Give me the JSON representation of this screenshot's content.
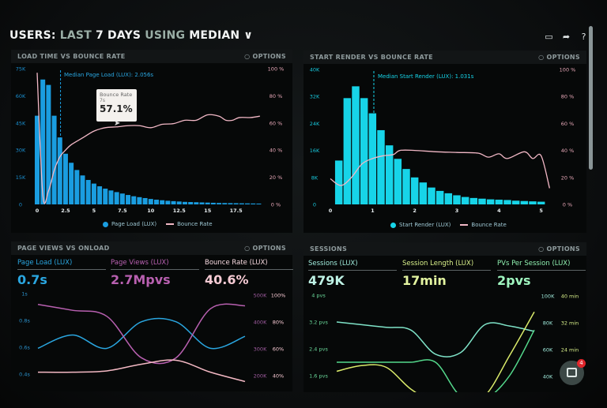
{
  "header": {
    "prefix": "USERS:",
    "range_pre": "LAST",
    "range_bold": "7 DAYS",
    "using": "USING",
    "mode": "MEDIAN",
    "chevron": "chevron-down-icon",
    "icons": [
      "monitor-icon",
      "share-icon",
      "help-icon"
    ]
  },
  "options_label": "OPTIONS",
  "colors": {
    "bars1": "#1a9de0",
    "bars2": "#17d4e8",
    "bounce": "#f2b8c6",
    "pageload": "#2aa6e0",
    "pageviews": "#b860b0",
    "bounce3": "#f4b9c4",
    "sessions": "#7fe3c8",
    "pvs": "#54d98c",
    "length": "#d9ea6a"
  },
  "panels": [
    {
      "title": "LOAD TIME VS BOUNCE RATE",
      "median_label": "Median Page Load (LUX): 2.056s",
      "legend": [
        "Page Load (LUX)",
        "Bounce Rate"
      ],
      "tooltip": {
        "title": "Bounce Rate",
        "x": "7s",
        "value": "57.1%"
      }
    },
    {
      "title": "START RENDER VS BOUNCE RATE",
      "median_label": "Median Start Render (LUX): 1.031s",
      "legend": [
        "Start Render (LUX)",
        "Bounce Rate"
      ]
    },
    {
      "title": "PAGE VIEWS VS ONLOAD",
      "kpis": [
        {
          "label": "Page Load (LUX)",
          "value": "0.7s"
        },
        {
          "label": "Page Views (LUX)",
          "value": "2.7Mpvs"
        },
        {
          "label": "Bounce Rate (LUX)",
          "value": "40.6%"
        }
      ]
    },
    {
      "title": "SESSIONS",
      "kpis": [
        {
          "label": "Sessions (LUX)",
          "value": "479K"
        },
        {
          "label": "Session Length (LUX)",
          "value": "17min"
        },
        {
          "label": "PVs Per Session (LUX)",
          "value": "2pvs"
        }
      ]
    }
  ],
  "chat": {
    "badge": "4",
    "icon": "chat-icon"
  },
  "chart_data": [
    {
      "type": "bar",
      "title": "LOAD TIME VS BOUNCE RATE",
      "xlim": [
        0,
        19.75
      ],
      "ylim": [
        0,
        75000
      ],
      "y2lim": [
        0,
        100
      ],
      "xticks": [
        "0",
        "2.5",
        "5",
        "7.5",
        "10",
        "12.5",
        "15",
        "17.5"
      ],
      "yticks": [
        "0",
        "15K",
        "30K",
        "45K",
        "60K",
        "75K"
      ],
      "y2ticks": [
        "0 %",
        "20 %",
        "40 %",
        "60 %",
        "80 %",
        "100 %"
      ],
      "median": 2.056,
      "series": [
        {
          "name": "Page Load (LUX)",
          "type": "bar",
          "bin_width": 0.5,
          "x_start": 0,
          "values": [
            49,
            69,
            66,
            49,
            37,
            28,
            23,
            19,
            16,
            13.5,
            11.5,
            10,
            8.7,
            7.7,
            6.8,
            6,
            5.2,
            4.5,
            4,
            3.5,
            3,
            2.6,
            2.3,
            2,
            1.8,
            1.6,
            1.4,
            1.3,
            1.2,
            1.1,
            1,
            0.9,
            0.8,
            0.75,
            0.7,
            0.65,
            0.6,
            0.55,
            0.5,
            0.45
          ],
          "unit": "K"
        },
        {
          "name": "Bounce Rate",
          "type": "line",
          "axis": "right",
          "points": [
            [
              0,
              97
            ],
            [
              0.5,
              7
            ],
            [
              1,
              10
            ],
            [
              1.5,
              25
            ],
            [
              2,
              35
            ],
            [
              2.5,
              40
            ],
            [
              3,
              44
            ],
            [
              4,
              49
            ],
            [
              5,
              54
            ],
            [
              6,
              56.5
            ],
            [
              7,
              57.1
            ],
            [
              8,
              58
            ],
            [
              9,
              58
            ],
            [
              10,
              56.5
            ],
            [
              11,
              59
            ],
            [
              12,
              59.5
            ],
            [
              13,
              62
            ],
            [
              14,
              62
            ],
            [
              15,
              66
            ],
            [
              16,
              65
            ],
            [
              16.6,
              62
            ],
            [
              17.2,
              62
            ],
            [
              17.8,
              64
            ],
            [
              18.8,
              64
            ],
            [
              19.6,
              65
            ]
          ]
        }
      ]
    },
    {
      "type": "bar",
      "title": "START RENDER VS BOUNCE RATE",
      "xlim": [
        0,
        5.25
      ],
      "ylim": [
        0,
        40000
      ],
      "y2lim": [
        0,
        100
      ],
      "xticks": [
        "0",
        "1",
        "2",
        "3",
        "4",
        "5"
      ],
      "yticks": [
        "0",
        "8K",
        "16K",
        "24K",
        "32K",
        "40K"
      ],
      "y2ticks": [
        "0 %",
        "20 %",
        "40 %",
        "60 %",
        "80 %",
        "100 %"
      ],
      "median": 1.031,
      "series": [
        {
          "name": "Start Render (LUX)",
          "type": "bar",
          "bin_width": 0.2,
          "x_start": 0.2,
          "values": [
            13,
            31.5,
            35,
            31.5,
            27,
            22,
            17.5,
            13.5,
            10.5,
            8,
            6.5,
            5,
            4,
            3.3,
            2.7,
            2.2,
            1.9,
            1.7,
            1.5,
            1.4,
            1.3,
            1.1,
            1,
            0.9,
            0.8
          ],
          "unit": "K"
        },
        {
          "name": "Bounce Rate",
          "type": "line",
          "axis": "right",
          "points": [
            [
              0,
              19
            ],
            [
              0.25,
              14
            ],
            [
              0.5,
              20
            ],
            [
              0.75,
              30
            ],
            [
              1,
              34
            ],
            [
              1.25,
              36
            ],
            [
              1.5,
              37
            ],
            [
              1.65,
              40
            ],
            [
              2,
              40
            ],
            [
              2.5,
              39
            ],
            [
              3,
              38.5
            ],
            [
              3.5,
              38
            ],
            [
              3.75,
              35
            ],
            [
              4,
              37.5
            ],
            [
              4.2,
              34
            ],
            [
              4.6,
              39
            ],
            [
              4.8,
              34
            ],
            [
              5,
              36
            ],
            [
              5.2,
              12
            ]
          ]
        }
      ]
    },
    {
      "type": "line",
      "title": "PAGE VIEWS VS ONLOAD",
      "yticks": [
        "0.4s",
        "0.6s",
        "0.8s",
        "1s"
      ],
      "ylim": [
        0.4,
        1
      ],
      "y2ticks": [
        "200K",
        "300K",
        "400K",
        "500K"
      ],
      "y2lim": [
        200,
        500
      ],
      "y3ticks": [
        "40%",
        "60%",
        "80%",
        "100%"
      ],
      "y3lim": [
        40,
        100
      ],
      "series": [
        {
          "name": "Page Load (LUX)",
          "axis": "left",
          "values": [
            0.6,
            0.7,
            0.6,
            0.8,
            0.8,
            0.6,
            0.69
          ]
        },
        {
          "name": "Page Views (LUX)",
          "axis": "right1",
          "values": [
            465,
            443,
            420,
            264,
            264,
            449,
            460
          ]
        },
        {
          "name": "Bounce Rate (LUX)",
          "axis": "right2",
          "values": [
            42,
            42,
            43,
            48,
            51,
            42,
            35
          ]
        }
      ]
    },
    {
      "type": "line",
      "title": "SESSIONS",
      "yticks": [
        "1.6 pvs",
        "2.4 pvs",
        "3.2 pvs",
        "4 pvs"
      ],
      "ylim": [
        1.6,
        4
      ],
      "y2ticks": [
        "40K",
        "60K",
        "80K",
        "100K"
      ],
      "y2lim": [
        40,
        100
      ],
      "y3ticks": [
        "24 min",
        "32 min",
        "40 min"
      ],
      "y3lim": [
        16,
        40
      ],
      "series": [
        {
          "name": "Sessions (LUX)",
          "axis": "right1",
          "values": [
            80,
            78,
            76,
            74,
            56,
            57,
            78,
            77,
            73
          ]
        },
        {
          "name": "PVs Per Session (LUX)",
          "axis": "left",
          "values": [
            2.0,
            2.0,
            2.0,
            2.0,
            2.0,
            1.0,
            0.9,
            1.6,
            2.96
          ]
        },
        {
          "name": "Session Length (LUX)",
          "axis": "right2",
          "values": [
            17.3,
            19,
            18.5,
            12,
            8,
            8,
            10,
            22,
            35
          ]
        }
      ]
    }
  ]
}
